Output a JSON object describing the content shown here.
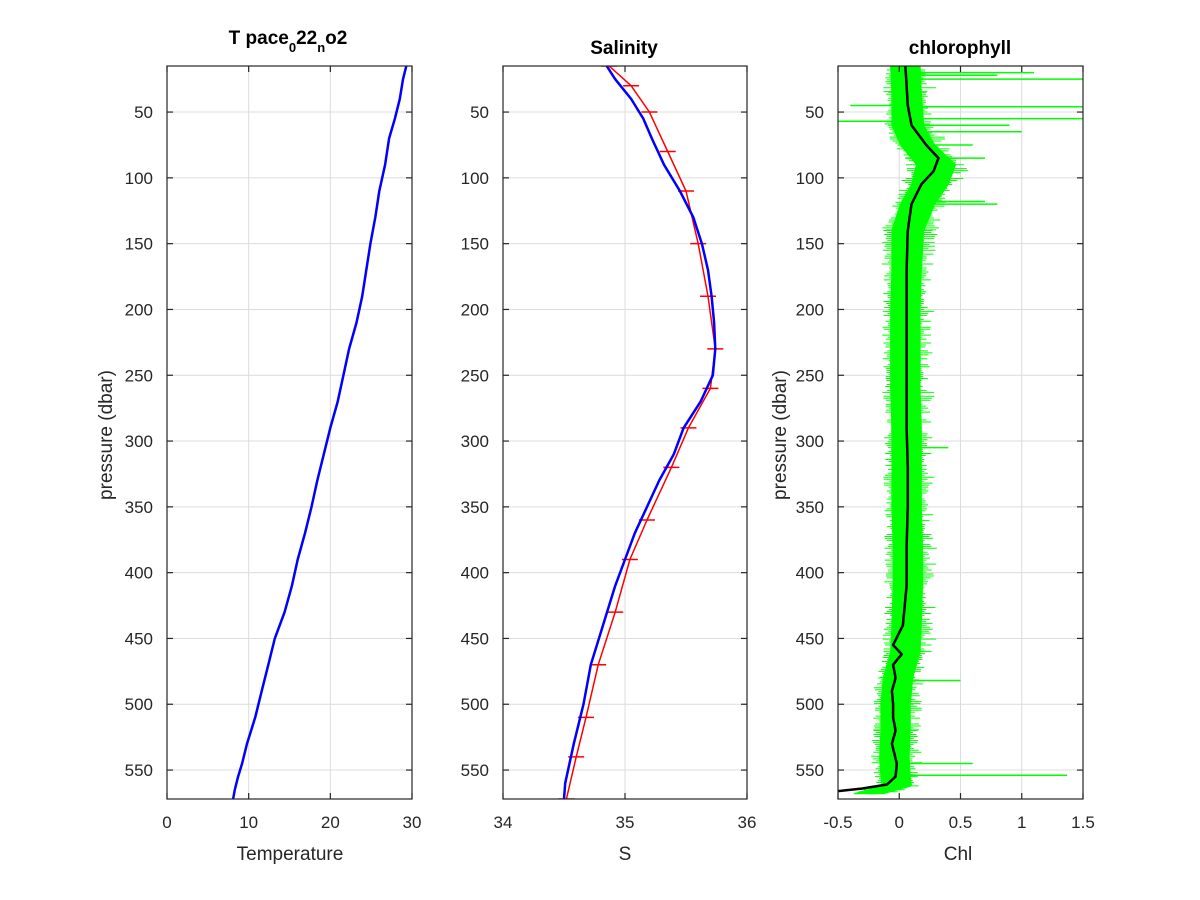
{
  "chart_data": [
    {
      "type": "line",
      "title_parts": {
        "a": "T pace",
        "b": "0",
        "c": "22",
        "d": "n",
        "e": "o2"
      },
      "xlabel": "Temperature",
      "ylabel": "pressure (dbar)",
      "xlim": [
        0,
        30
      ],
      "ylim": [
        15,
        572
      ],
      "y_reversed": true,
      "grid": true,
      "xticks": [
        "0",
        "10",
        "20",
        "30"
      ],
      "yticks": [
        "50",
        "100",
        "150",
        "200",
        "250",
        "300",
        "350",
        "400",
        "450",
        "500",
        "550"
      ],
      "series": [
        {
          "color": "#0000ff",
          "x": [
            29.3,
            28.9,
            28.5,
            27.9,
            27.2,
            26.7,
            26.0,
            25.5,
            24.9,
            24.4,
            23.9,
            23.2,
            22.3,
            21.6,
            20.9,
            20.0,
            19.2,
            18.4,
            17.7,
            16.9,
            16.0,
            15.3,
            14.4,
            13.2,
            12.4,
            11.6,
            10.8,
            9.8,
            9.2,
            8.7,
            8.3,
            8.1
          ],
          "y": [
            15,
            25,
            40,
            55,
            70,
            90,
            110,
            130,
            150,
            170,
            190,
            210,
            230,
            250,
            270,
            290,
            310,
            330,
            350,
            370,
            390,
            410,
            430,
            450,
            470,
            490,
            510,
            530,
            545,
            555,
            565,
            572
          ]
        }
      ]
    },
    {
      "type": "line",
      "title": "Salinity",
      "xlabel": "S",
      "xlim": [
        34,
        36
      ],
      "ylim": [
        15,
        572
      ],
      "y_reversed": true,
      "grid": true,
      "xticks": [
        "34",
        "35",
        "36"
      ],
      "yticks": [
        "50",
        "100",
        "150",
        "200",
        "250",
        "300",
        "350",
        "400",
        "450",
        "500",
        "550"
      ],
      "series": [
        {
          "color": "#ff0000",
          "x": [
            34.87,
            35.05,
            35.2,
            35.35,
            35.5,
            35.6,
            35.68,
            35.74,
            35.7,
            35.52,
            35.38,
            35.18,
            35.04,
            34.92,
            34.78,
            34.68,
            34.6,
            34.52
          ],
          "y": [
            15,
            30,
            50,
            80,
            110,
            150,
            190,
            230,
            260,
            290,
            320,
            360,
            390,
            430,
            470,
            510,
            540,
            572
          ]
        },
        {
          "color": "#0000ff",
          "x": [
            34.85,
            34.92,
            35.05,
            35.15,
            35.22,
            35.32,
            35.45,
            35.56,
            35.63,
            35.68,
            35.71,
            35.73,
            35.74,
            35.72,
            35.62,
            35.48,
            35.4,
            35.28,
            35.18,
            35.08,
            35.0,
            34.92,
            34.82,
            34.72,
            34.66,
            34.58,
            34.51,
            34.5
          ],
          "y": [
            15,
            25,
            40,
            55,
            70,
            90,
            110,
            130,
            150,
            170,
            190,
            210,
            230,
            250,
            270,
            290,
            310,
            330,
            350,
            370,
            390,
            410,
            440,
            470,
            500,
            530,
            560,
            572
          ]
        }
      ]
    },
    {
      "type": "line",
      "title": "chlorophyll",
      "xlabel": "Chl",
      "ylabel": "pressure (dbar)",
      "xlim": [
        -0.5,
        1.5
      ],
      "ylim": [
        15,
        572
      ],
      "y_reversed": true,
      "grid": true,
      "xticks": [
        "-0.5",
        "0",
        "0.5",
        "1",
        "1.5"
      ],
      "yticks": [
        "50",
        "100",
        "150",
        "200",
        "250",
        "300",
        "350",
        "400",
        "450",
        "500",
        "550"
      ],
      "series": [
        {
          "color": "#00ff00",
          "band_center_x": [
            0.05,
            0.06,
            0.07,
            0.15,
            0.3,
            0.25,
            0.15,
            0.07,
            0.06,
            0.05,
            0.05,
            0.05,
            0.06,
            0.06,
            0.06,
            0.07,
            0.07,
            0.06,
            0.05,
            -0.01,
            -0.03,
            -0.03,
            -0.04,
            -0.03,
            -0.02,
            -0.25
          ],
          "band_halfwidth_x": [
            0.12,
            0.12,
            0.13,
            0.14,
            0.16,
            0.15,
            0.14,
            0.13,
            0.12,
            0.12,
            0.12,
            0.12,
            0.12,
            0.12,
            0.12,
            0.12,
            0.12,
            0.12,
            0.12,
            0.12,
            0.12,
            0.12,
            0.12,
            0.12,
            0.12,
            0.12
          ],
          "band_y": [
            15,
            35,
            60,
            75,
            90,
            105,
            120,
            140,
            170,
            200,
            230,
            260,
            290,
            320,
            350,
            380,
            410,
            440,
            460,
            480,
            500,
            520,
            540,
            555,
            562,
            568
          ],
          "spikes": [
            {
              "y": 20,
              "x": 1.1
            },
            {
              "y": 22,
              "x": 0.8
            },
            {
              "y": 25,
              "x": 1.5
            },
            {
              "y": 45,
              "x": -0.4
            },
            {
              "y": 46,
              "x": 1.5
            },
            {
              "y": 55,
              "x": 1.5
            },
            {
              "y": 57,
              "x": -0.5
            },
            {
              "y": 60,
              "x": 0.9
            },
            {
              "y": 65,
              "x": 1.0
            },
            {
              "y": 75,
              "x": 0.6
            },
            {
              "y": 85,
              "x": 0.7
            },
            {
              "y": 118,
              "x": 0.7
            },
            {
              "y": 120,
              "x": 0.8
            },
            {
              "y": 305,
              "x": 0.4
            },
            {
              "y": 482,
              "x": 0.5
            },
            {
              "y": 545,
              "x": 0.6
            },
            {
              "y": 554,
              "x": 1.37
            }
          ]
        },
        {
          "color": "#000000",
          "x": [
            0.05,
            0.06,
            0.07,
            0.1,
            0.22,
            0.32,
            0.28,
            0.18,
            0.1,
            0.07,
            0.06,
            0.06,
            0.06,
            0.06,
            0.06,
            0.07,
            0.07,
            0.06,
            0.06,
            0.03,
            -0.05,
            0.02,
            -0.05,
            -0.03,
            -0.06,
            -0.05,
            -0.05,
            -0.03,
            -0.06,
            -0.02,
            -0.03,
            -0.1,
            -0.3,
            -0.5
          ],
          "y": [
            15,
            30,
            45,
            60,
            75,
            85,
            95,
            105,
            120,
            140,
            170,
            200,
            230,
            260,
            290,
            320,
            350,
            380,
            410,
            440,
            455,
            462,
            470,
            480,
            490,
            500,
            510,
            520,
            530,
            545,
            555,
            561,
            564,
            566
          ]
        }
      ]
    }
  ]
}
